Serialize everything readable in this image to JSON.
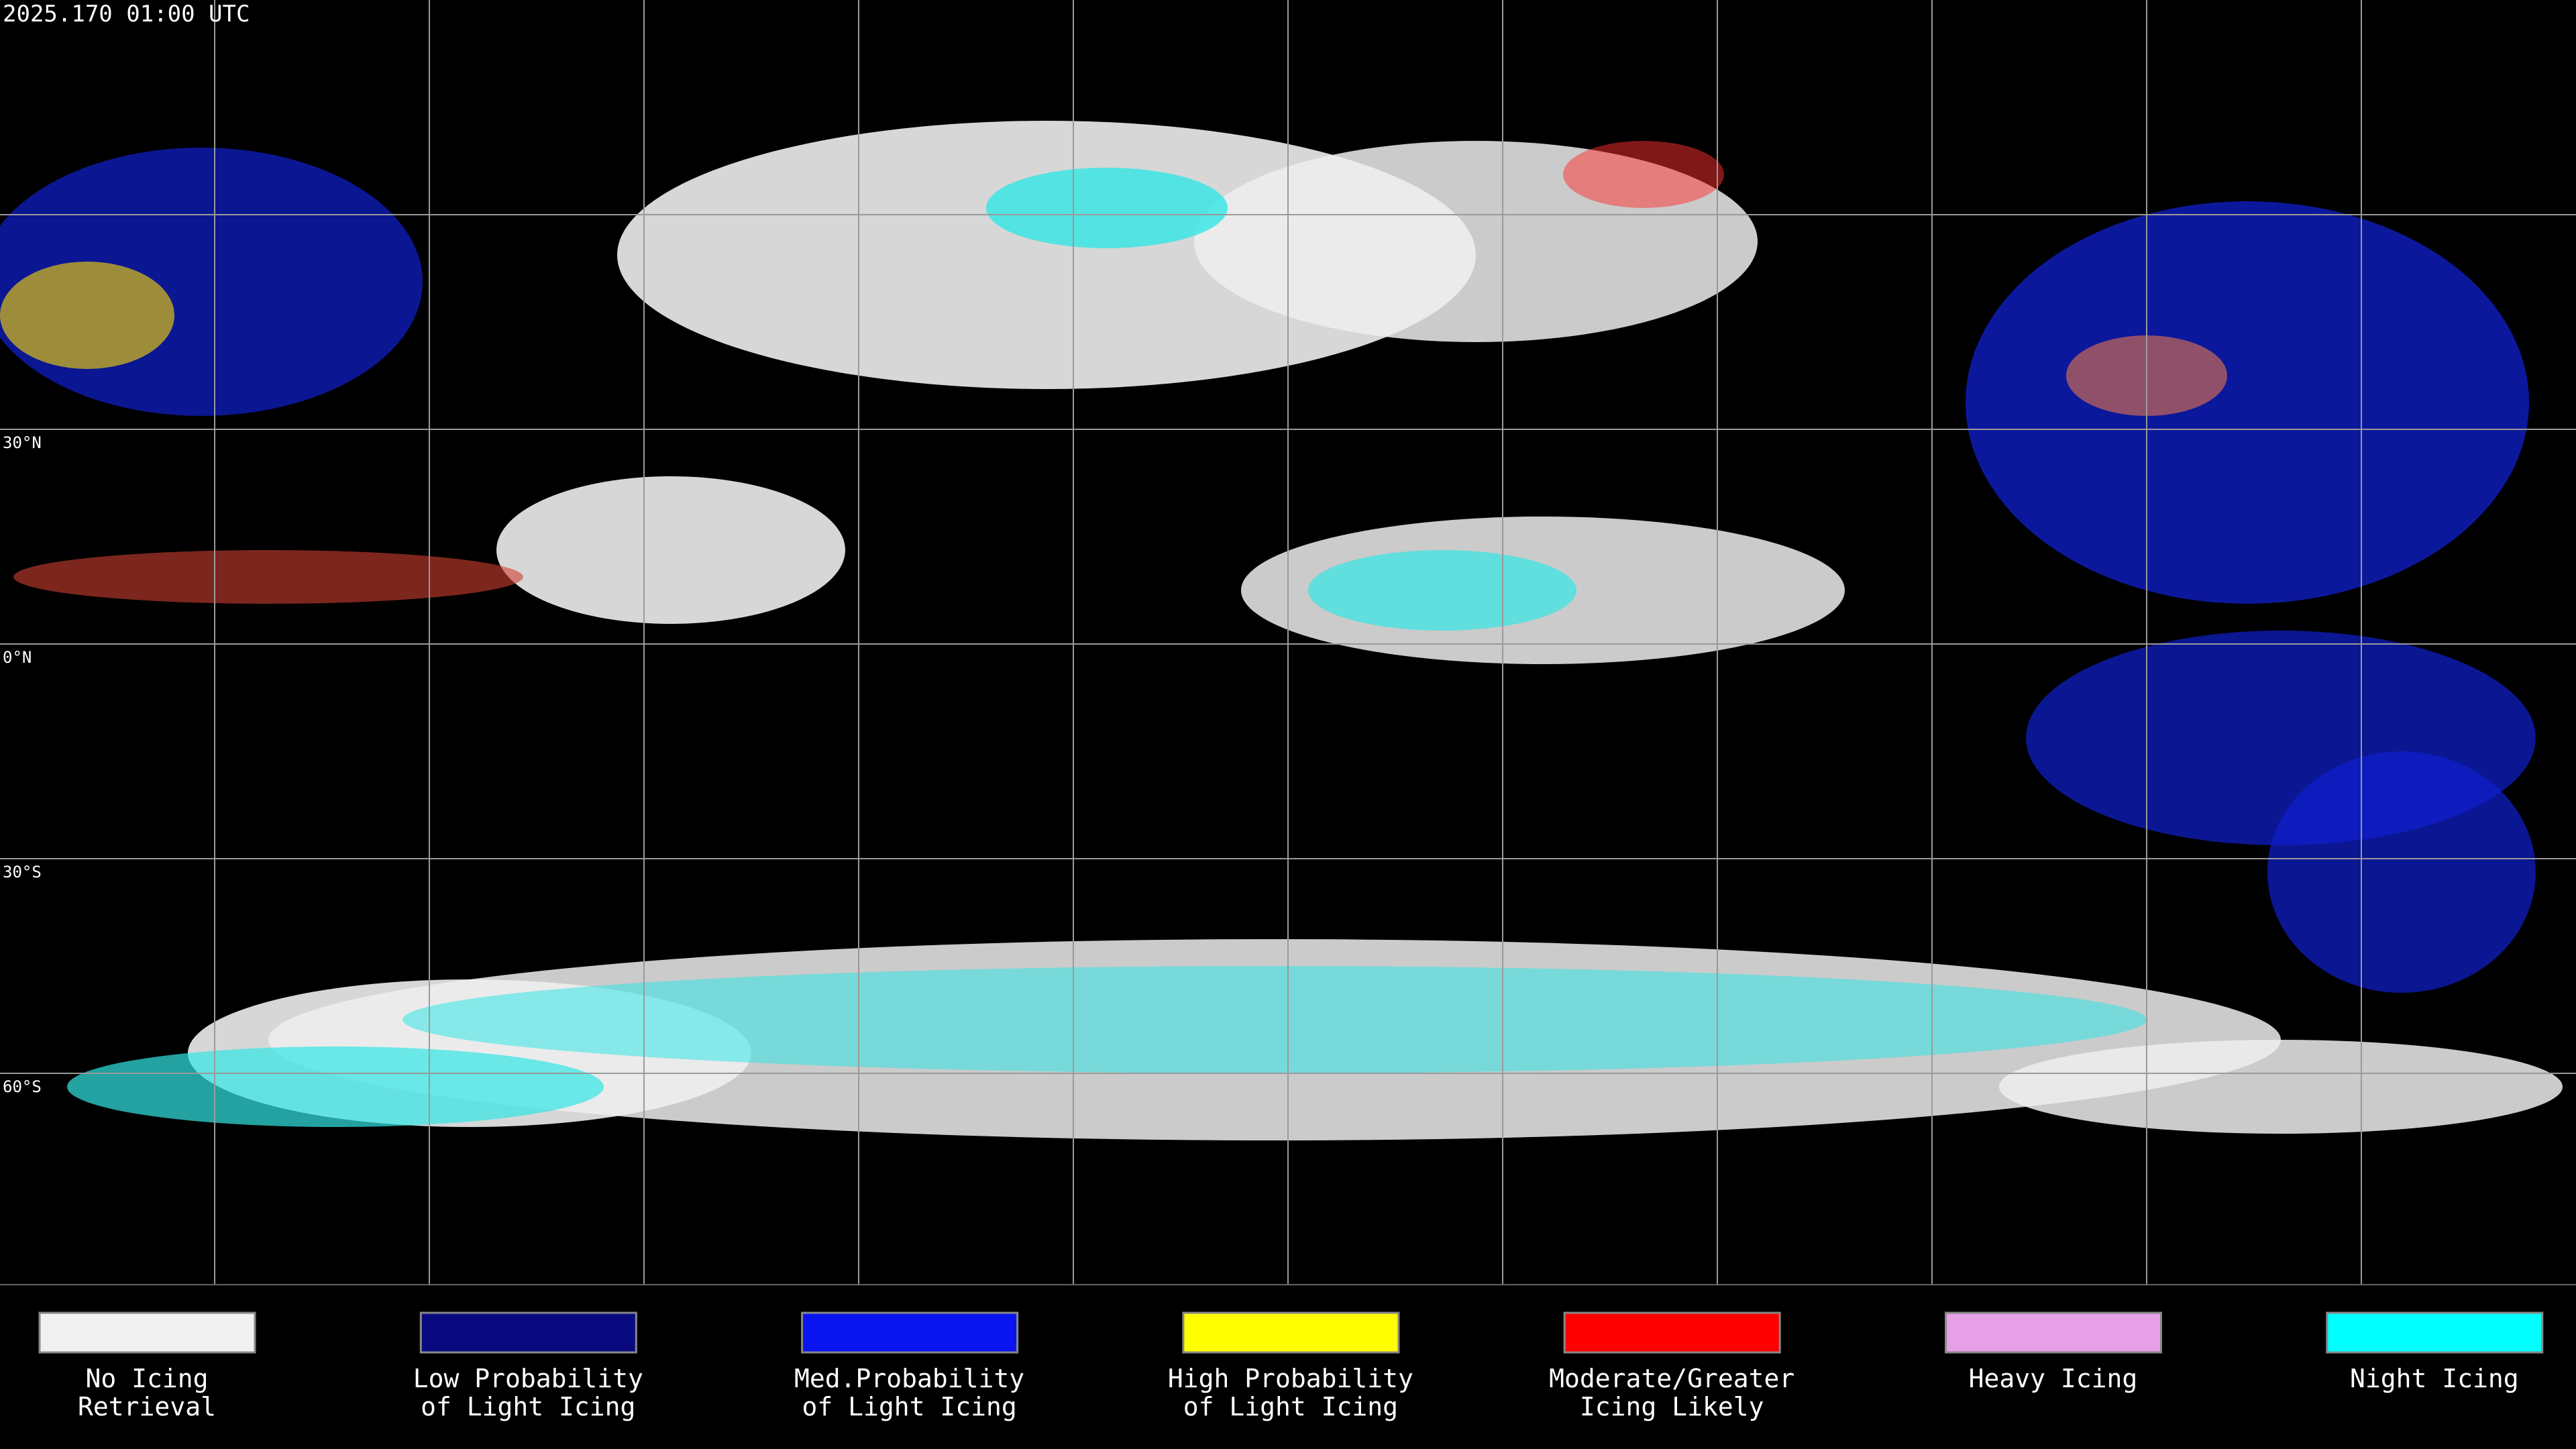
{
  "header": {
    "timestamp": "2025.170 01:00 UTC"
  },
  "map": {
    "latitude_labels": [
      "30°N",
      "0°N",
      "30°S",
      "60°S"
    ]
  },
  "legend": {
    "items": [
      {
        "label": [
          "No Icing",
          "Retrieval"
        ],
        "color": "#f0f0f0"
      },
      {
        "label": [
          "Low Probability",
          "of Light Icing"
        ],
        "color": "#0a0a80"
      },
      {
        "label": [
          "Med.Probability",
          "of Light Icing"
        ],
        "color": "#0a14f0"
      },
      {
        "label": [
          "High Probability",
          "of Light Icing"
        ],
        "color": "#ffff00"
      },
      {
        "label": [
          "Moderate/Greater",
          "Icing Likely"
        ],
        "color": "#ff0000"
      },
      {
        "label": [
          "Heavy Icing"
        ],
        "color": "#e6a0e6"
      },
      {
        "label": [
          "Night Icing"
        ],
        "color": "#00ffff"
      }
    ]
  }
}
